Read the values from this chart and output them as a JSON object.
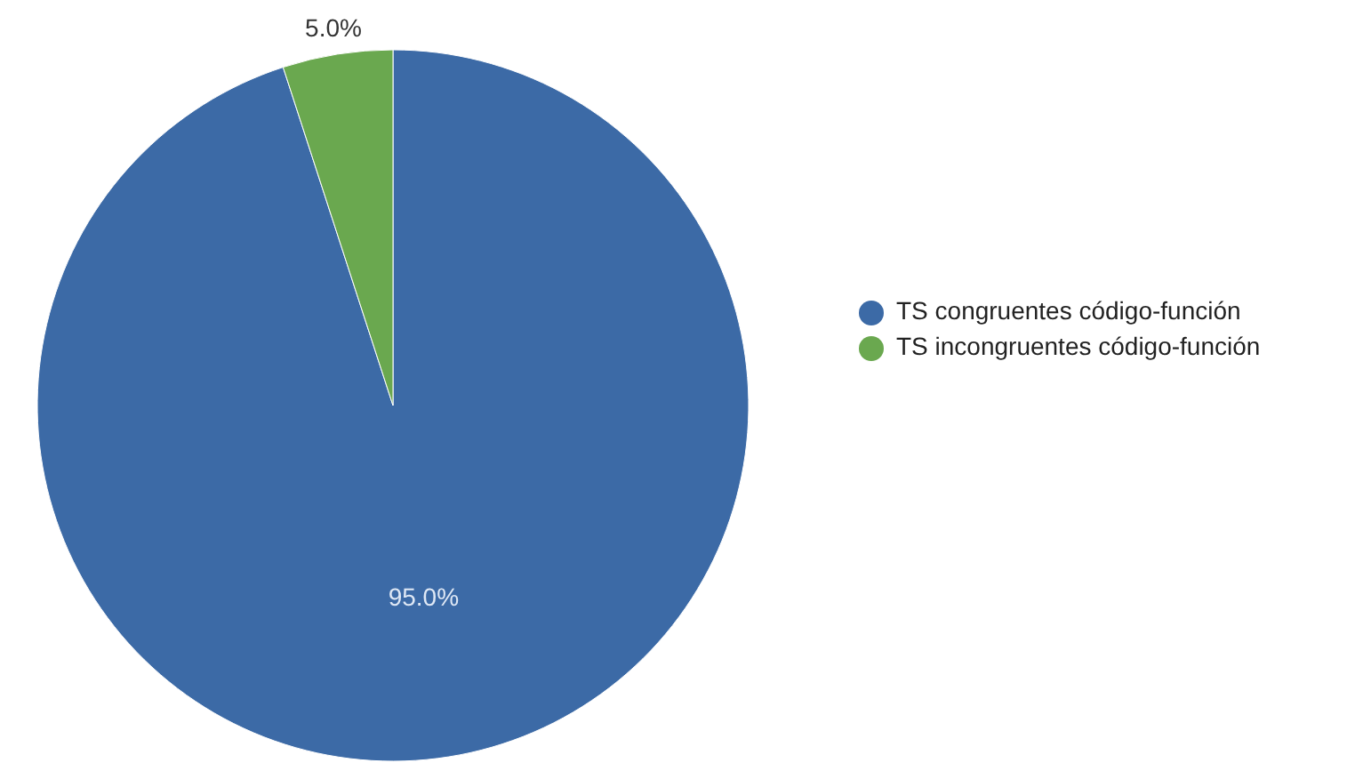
{
  "chart_data": {
    "type": "pie",
    "categories": [
      "TS congruentes código-función",
      "TS incongruentes código-función"
    ],
    "values": [
      95.0,
      5.0
    ],
    "colors": [
      "#3c6aa6",
      "#6aa84f"
    ],
    "value_labels": [
      "95.0%",
      "5.0%"
    ],
    "legend": "right"
  }
}
